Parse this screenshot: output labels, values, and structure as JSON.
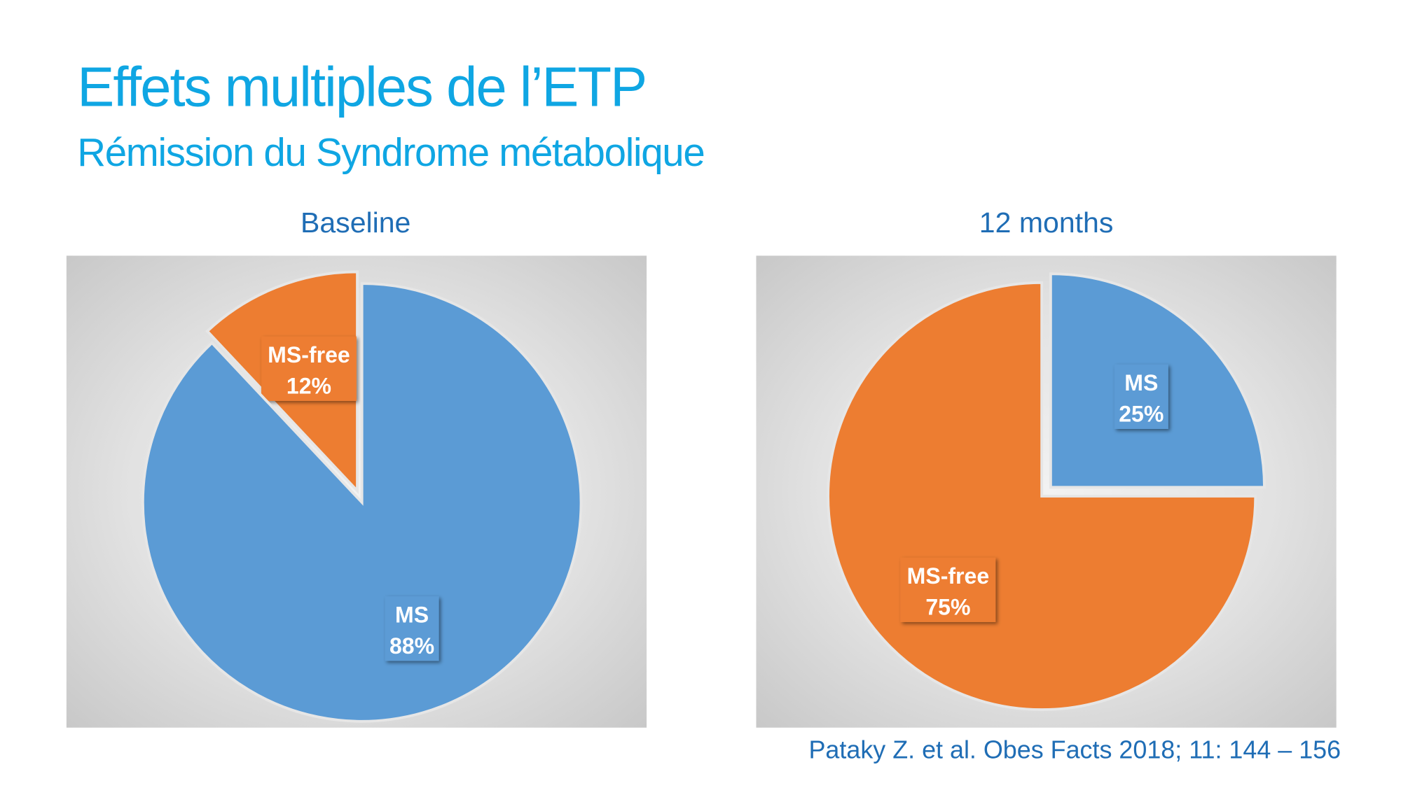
{
  "title": "Effets multiples de l’ETP",
  "subtitle": "Rémission du Syndrome métabolique",
  "citation": "Pataky Z. et al. Obes Facts 2018; 11: 144 – 156",
  "colors": {
    "MS": "#5b9bd5",
    "MS-free": "#ed7d31"
  },
  "chart_data": [
    {
      "type": "pie",
      "title": "Baseline",
      "slices": [
        {
          "label": "MS-free",
          "value": 12,
          "data_label": "12%"
        },
        {
          "label": "MS",
          "value": 88,
          "data_label": "88%"
        }
      ]
    },
    {
      "type": "pie",
      "title": "12 months",
      "slices": [
        {
          "label": "MS",
          "value": 25,
          "data_label": "25%"
        },
        {
          "label": "MS-free",
          "value": 75,
          "data_label": "75%"
        }
      ]
    }
  ]
}
